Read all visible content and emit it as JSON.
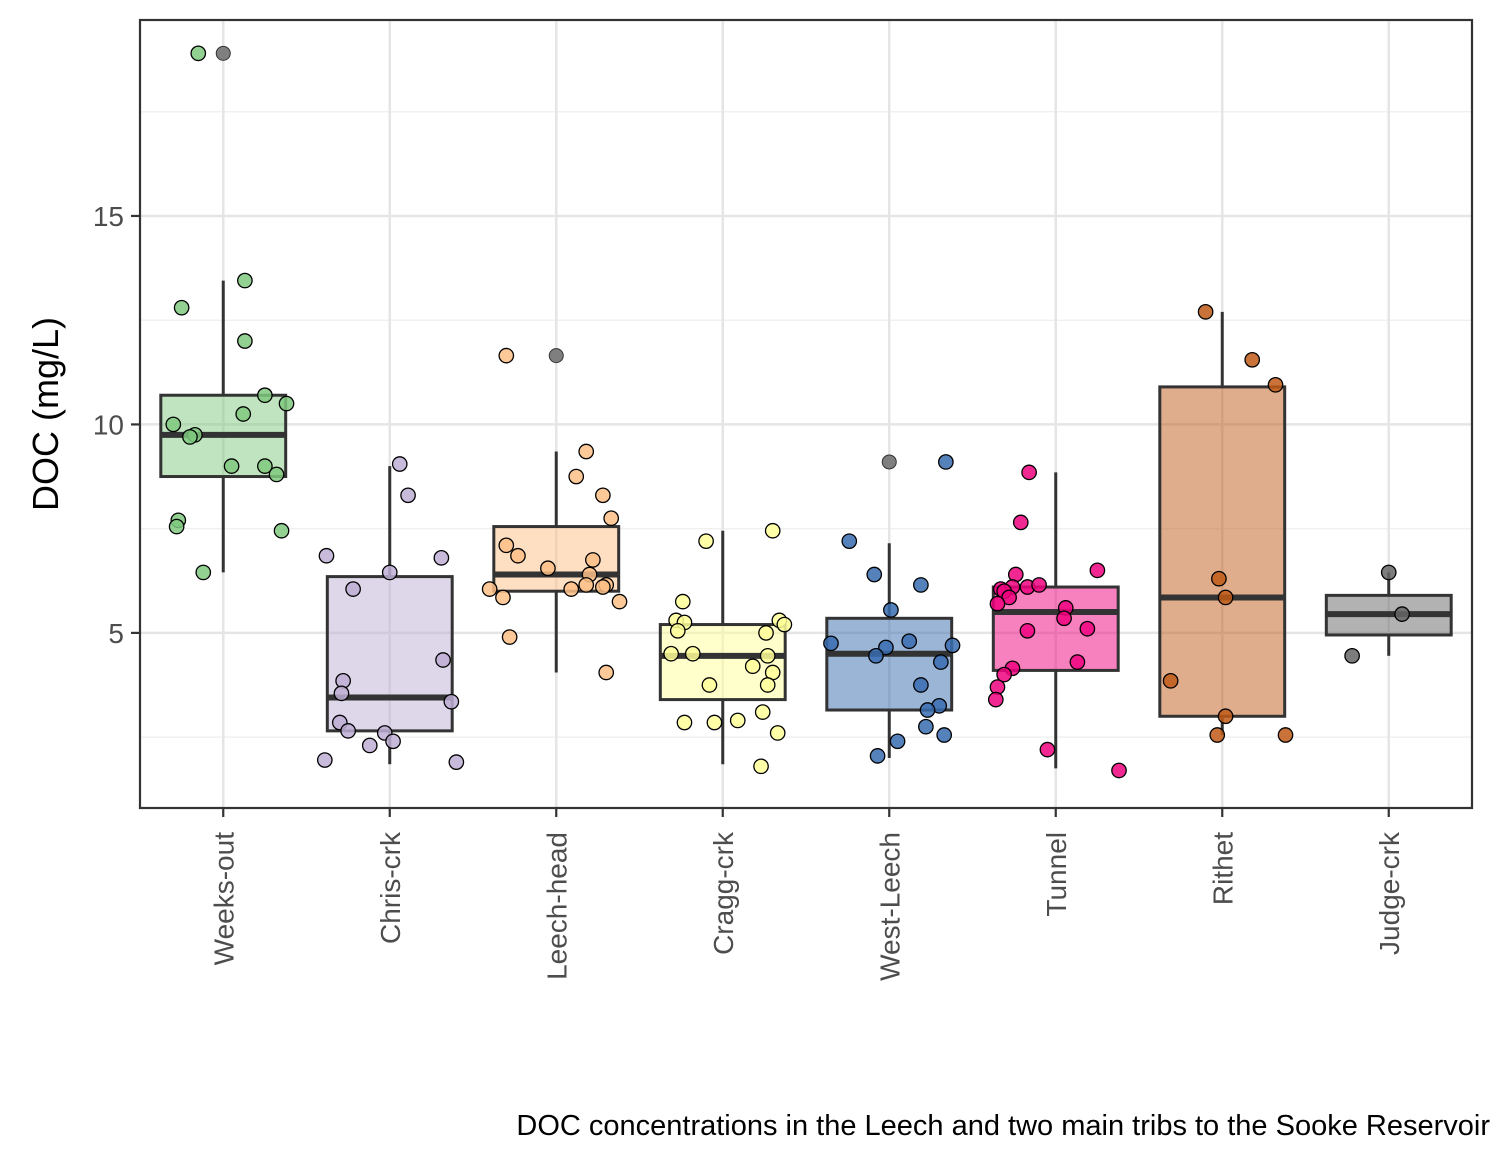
{
  "chart_data": {
    "type": "box",
    "title": "",
    "xlabel": "",
    "ylabel": "DOC (mg/L)",
    "caption": "DOC concentrations in the Leech and two main tribs to the Sooke Reservoir",
    "ylim": [
      0.8,
      19.7
    ],
    "yticks": [
      5,
      10,
      15
    ],
    "grid": true,
    "legend": "none",
    "categories": [
      "Weeks-out",
      "Chris-crk",
      "Leech-head",
      "Cragg-crk",
      "West-Leech",
      "Tunnel",
      "Rithet",
      "Judge-crk"
    ],
    "boxes": [
      {
        "name": "Weeks-out",
        "color": "#7fc97f",
        "q1": 8.75,
        "median": 9.75,
        "q3": 10.7,
        "whisker_low": 6.45,
        "whisker_high": 13.45,
        "outliers": [
          18.9
        ],
        "points": [
          [
            -0.15,
            18.9
          ],
          [
            0.13,
            13.45
          ],
          [
            -0.25,
            12.8
          ],
          [
            0.13,
            12.0
          ],
          [
            0.25,
            10.7
          ],
          [
            0.38,
            10.5
          ],
          [
            -0.3,
            10.0
          ],
          [
            0.12,
            10.25
          ],
          [
            -0.17,
            9.75
          ],
          [
            -0.2,
            9.7
          ],
          [
            0.05,
            9.0
          ],
          [
            0.25,
            9.0
          ],
          [
            0.32,
            8.8
          ],
          [
            -0.27,
            7.7
          ],
          [
            -0.28,
            7.55
          ],
          [
            0.35,
            7.45
          ],
          [
            -0.12,
            6.45
          ]
        ]
      },
      {
        "name": "Chris-crk",
        "color": "#beaed4",
        "q1": 2.65,
        "median": 3.45,
        "q3": 6.35,
        "whisker_low": 1.85,
        "whisker_high": 9.0,
        "outliers": [],
        "points": [
          [
            0.06,
            9.05
          ],
          [
            0.11,
            8.3
          ],
          [
            -0.38,
            6.85
          ],
          [
            0.31,
            6.8
          ],
          [
            0.0,
            6.45
          ],
          [
            -0.22,
            6.05
          ],
          [
            0.32,
            4.35
          ],
          [
            -0.28,
            3.85
          ],
          [
            -0.29,
            3.55
          ],
          [
            0.37,
            3.35
          ],
          [
            -0.3,
            2.85
          ],
          [
            -0.25,
            2.65
          ],
          [
            -0.03,
            2.6
          ],
          [
            0.02,
            2.4
          ],
          [
            -0.12,
            2.3
          ],
          [
            -0.39,
            1.95
          ],
          [
            0.4,
            1.9
          ]
        ]
      },
      {
        "name": "Leech-head",
        "color": "#fdc086",
        "q1": 6.0,
        "median": 6.4,
        "q3": 7.55,
        "whisker_low": 4.05,
        "whisker_high": 9.35,
        "outliers": [
          11.65
        ],
        "points": [
          [
            -0.3,
            11.65
          ],
          [
            0.18,
            9.35
          ],
          [
            0.12,
            8.75
          ],
          [
            0.28,
            8.3
          ],
          [
            0.33,
            7.75
          ],
          [
            -0.3,
            7.1
          ],
          [
            -0.23,
            6.85
          ],
          [
            0.22,
            6.75
          ],
          [
            -0.05,
            6.55
          ],
          [
            0.2,
            6.4
          ],
          [
            0.18,
            6.15
          ],
          [
            0.3,
            6.15
          ],
          [
            0.28,
            6.1
          ],
          [
            -0.4,
            6.05
          ],
          [
            0.09,
            6.05
          ],
          [
            -0.32,
            5.85
          ],
          [
            0.38,
            5.75
          ],
          [
            -0.28,
            4.9
          ],
          [
            0.3,
            4.05
          ]
        ]
      },
      {
        "name": "Cragg-crk",
        "color": "#ffff99",
        "q1": 3.4,
        "median": 4.45,
        "q3": 5.2,
        "whisker_low": 1.85,
        "whisker_high": 7.45,
        "outliers": [],
        "points": [
          [
            0.3,
            7.45
          ],
          [
            -0.1,
            7.2
          ],
          [
            -0.24,
            5.75
          ],
          [
            -0.28,
            5.3
          ],
          [
            -0.23,
            5.25
          ],
          [
            0.34,
            5.3
          ],
          [
            0.37,
            5.2
          ],
          [
            -0.27,
            5.05
          ],
          [
            0.26,
            5.0
          ],
          [
            -0.31,
            4.5
          ],
          [
            -0.18,
            4.5
          ],
          [
            0.27,
            4.45
          ],
          [
            0.18,
            4.2
          ],
          [
            0.3,
            4.05
          ],
          [
            0.27,
            3.75
          ],
          [
            -0.08,
            3.75
          ],
          [
            0.24,
            3.1
          ],
          [
            0.09,
            2.9
          ],
          [
            -0.23,
            2.85
          ],
          [
            -0.05,
            2.85
          ],
          [
            0.33,
            2.6
          ],
          [
            0.23,
            1.8
          ]
        ]
      },
      {
        "name": "West-Leech",
        "color": "#386cb0",
        "q1": 3.15,
        "median": 4.5,
        "q3": 5.35,
        "whisker_low": 2.0,
        "whisker_high": 7.15,
        "outliers": [
          9.1
        ],
        "points": [
          [
            0.34,
            9.1
          ],
          [
            -0.24,
            7.2
          ],
          [
            -0.09,
            6.4
          ],
          [
            0.19,
            6.15
          ],
          [
            0.01,
            5.55
          ],
          [
            -0.35,
            4.75
          ],
          [
            0.12,
            4.8
          ],
          [
            0.38,
            4.7
          ],
          [
            -0.02,
            4.65
          ],
          [
            -0.08,
            4.45
          ],
          [
            0.31,
            4.3
          ],
          [
            0.19,
            3.75
          ],
          [
            0.3,
            3.25
          ],
          [
            0.23,
            3.15
          ],
          [
            0.22,
            2.75
          ],
          [
            0.33,
            2.55
          ],
          [
            0.05,
            2.4
          ],
          [
            -0.07,
            2.05
          ]
        ]
      },
      {
        "name": "Tunnel",
        "color": "#f0027f",
        "q1": 4.1,
        "median": 5.5,
        "q3": 6.1,
        "whisker_low": 1.75,
        "whisker_high": 8.85,
        "outliers": [],
        "points": [
          [
            -0.16,
            8.85
          ],
          [
            -0.21,
            7.65
          ],
          [
            -0.24,
            6.4
          ],
          [
            0.25,
            6.5
          ],
          [
            -0.33,
            6.05
          ],
          [
            -0.26,
            6.1
          ],
          [
            -0.17,
            6.1
          ],
          [
            -0.1,
            6.15
          ],
          [
            -0.31,
            6.0
          ],
          [
            -0.28,
            5.85
          ],
          [
            0.06,
            5.6
          ],
          [
            -0.35,
            5.7
          ],
          [
            0.05,
            5.35
          ],
          [
            0.19,
            5.1
          ],
          [
            -0.17,
            5.05
          ],
          [
            0.13,
            4.3
          ],
          [
            -0.26,
            4.15
          ],
          [
            -0.31,
            4.0
          ],
          [
            -0.35,
            3.7
          ],
          [
            -0.36,
            3.4
          ],
          [
            -0.05,
            2.2
          ],
          [
            0.38,
            1.7
          ]
        ]
      },
      {
        "name": "Rithet",
        "color": "#bf5b17",
        "q1": 3.0,
        "median": 5.85,
        "q3": 10.9,
        "whisker_low": 2.55,
        "whisker_high": 12.7,
        "outliers": [],
        "points": [
          [
            -0.1,
            12.7
          ],
          [
            0.18,
            11.55
          ],
          [
            0.32,
            10.95
          ],
          [
            -0.02,
            6.3
          ],
          [
            0.02,
            5.85
          ],
          [
            -0.31,
            3.85
          ],
          [
            0.02,
            3.0
          ],
          [
            -0.03,
            2.55
          ],
          [
            0.38,
            2.55
          ]
        ]
      },
      {
        "name": "Judge-crk",
        "color": "#666666",
        "q1": 4.95,
        "median": 5.45,
        "q3": 5.9,
        "whisker_low": 4.45,
        "whisker_high": 6.45,
        "outliers": [],
        "points": [
          [
            0.0,
            6.45
          ],
          [
            0.08,
            5.45
          ],
          [
            -0.22,
            4.45
          ]
        ]
      }
    ]
  }
}
